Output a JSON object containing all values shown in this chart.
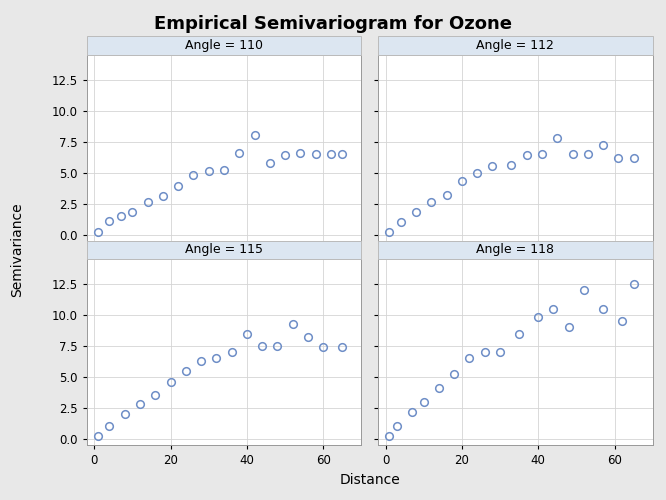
{
  "title": "Empirical Semivariogram for Ozone",
  "xlabel": "Distance",
  "ylabel": "Semivariance",
  "panels": [
    {
      "angle": "Angle = 110",
      "x": [
        1,
        4,
        7,
        10,
        14,
        18,
        22,
        26,
        30,
        34,
        38,
        42,
        46,
        50,
        54,
        58,
        62,
        65
      ],
      "y": [
        0.2,
        1.1,
        1.5,
        1.8,
        2.6,
        3.1,
        3.9,
        4.8,
        5.1,
        5.2,
        6.6,
        8.0,
        5.8,
        6.4,
        6.6,
        6.5,
        6.5,
        6.5
      ]
    },
    {
      "angle": "Angle = 112",
      "x": [
        1,
        4,
        8,
        12,
        16,
        20,
        24,
        28,
        33,
        37,
        41,
        45,
        49,
        53,
        57,
        61,
        65
      ],
      "y": [
        0.2,
        1.0,
        1.8,
        2.6,
        3.2,
        4.3,
        5.0,
        5.5,
        5.6,
        6.4,
        6.5,
        7.8,
        6.5,
        6.5,
        7.2,
        6.2,
        6.2
      ]
    },
    {
      "angle": "Angle = 115",
      "x": [
        1,
        4,
        8,
        12,
        16,
        20,
        24,
        28,
        32,
        36,
        40,
        44,
        48,
        52,
        56,
        60,
        65
      ],
      "y": [
        0.2,
        1.0,
        2.0,
        2.8,
        3.5,
        4.6,
        5.5,
        6.3,
        6.5,
        7.0,
        8.5,
        7.5,
        7.5,
        9.3,
        8.2,
        7.4,
        7.4
      ]
    },
    {
      "angle": "Angle = 118",
      "x": [
        1,
        3,
        7,
        10,
        14,
        18,
        22,
        26,
        30,
        35,
        40,
        44,
        48,
        52,
        57,
        62,
        65
      ],
      "y": [
        0.2,
        1.0,
        2.2,
        3.0,
        4.1,
        5.2,
        6.5,
        7.0,
        7.0,
        8.5,
        9.8,
        10.5,
        9.0,
        12.0,
        10.5,
        9.5,
        12.5
      ]
    }
  ],
  "ylim": [
    -0.5,
    14.5
  ],
  "xlim": [
    -2,
    70
  ],
  "yticks": [
    0.0,
    2.5,
    5.0,
    7.5,
    10.0,
    12.5
  ],
  "xticks": [
    0,
    20,
    40,
    60
  ],
  "marker_color": "#6e8ec7",
  "marker_size": 5.5,
  "marker_style": "o",
  "grid_color": "#d4d4d4",
  "bg_color": "#e8e8e8",
  "panel_bg": "#ffffff",
  "strip_bg": "#dce6f1",
  "strip_edge": "#bbbbbb",
  "title_fontsize": 13,
  "strip_fontsize": 9,
  "axis_label_fontsize": 10,
  "tick_fontsize": 8.5
}
